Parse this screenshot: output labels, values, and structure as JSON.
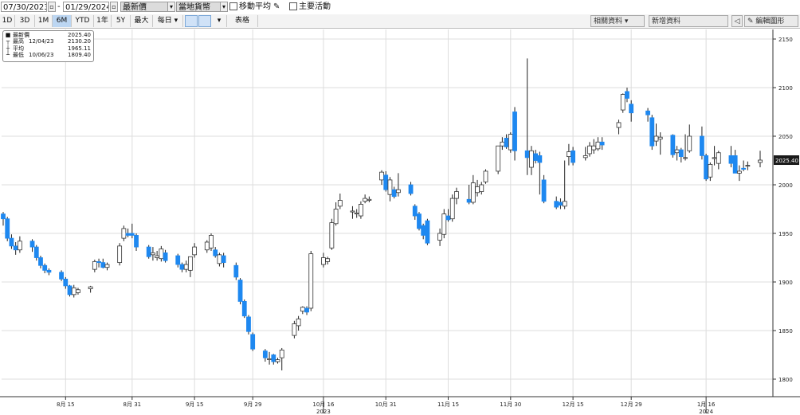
{
  "toolbar": {
    "start_date": "07/30/2023",
    "end_date": "01/29/2024",
    "price_type": "最新價",
    "currency": "當地貨幣",
    "moving_average_label": "移動平均",
    "events_label": "主要活動"
  },
  "ranges": [
    "1D",
    "3D",
    "1M",
    "6M",
    "YTD",
    "1年",
    "5Y",
    "最大"
  ],
  "active_range": "6M",
  "frequency": "每日",
  "table_label": "表格",
  "related_data_label": "相關資料",
  "add_data_label": "新增資料",
  "edit_chart_label": "編輯圖形",
  "legend": [
    {
      "icon": "■",
      "name": "最新價",
      "date": "",
      "value": "2025.40"
    },
    {
      "icon": "┬",
      "name": "最高",
      "date": "12/04/23",
      "value": "2130.20"
    },
    {
      "icon": "┼",
      "name": "平均",
      "date": "",
      "value": "1965.11"
    },
    {
      "icon": "┴",
      "name": "最低",
      "date": "10/06/23",
      "value": "1809.40"
    }
  ],
  "colors": {
    "up": "#ffffff",
    "down": "#1e88f0",
    "wick": "#222222",
    "grid": "#dddddd",
    "last_label_bg": "#1a1a1a"
  },
  "chart_data": {
    "type": "candlestick",
    "ylim": [
      1780,
      2160
    ],
    "y_ticks": [
      1800,
      1850,
      1900,
      1950,
      2000,
      2050,
      2100,
      2150
    ],
    "last_value": "2025.40",
    "x_ticks": [
      {
        "label": "8月 15",
        "date": "2023-08-15"
      },
      {
        "label": "8月 31",
        "date": "2023-08-31"
      },
      {
        "label": "9月 15",
        "date": "2023-09-15"
      },
      {
        "label": "9月 29",
        "date": "2023-09-29"
      },
      {
        "label": "10月 16",
        "date": "2023-10-16"
      },
      {
        "label": "10月 31",
        "date": "2023-10-31"
      },
      {
        "label": "11月 15",
        "date": "2023-11-15"
      },
      {
        "label": "11月 30",
        "date": "2023-11-30"
      },
      {
        "label": "12月 15",
        "date": "2023-12-15"
      },
      {
        "label": "12月 29",
        "date": "2023-12-29"
      },
      {
        "label": "1月 16",
        "date": "2024-01-16"
      }
    ],
    "year_labels": [
      {
        "label": "2023",
        "date": "2023-10-16"
      },
      {
        "label": "2024",
        "date": "2024-01-16"
      }
    ],
    "candles": [
      {
        "date": "2023-07-31",
        "o": 1970,
        "h": 1972,
        "l": 1958,
        "c": 1965
      },
      {
        "date": "2023-08-01",
        "o": 1965,
        "h": 1967,
        "l": 1942,
        "c": 1945
      },
      {
        "date": "2023-08-02",
        "o": 1945,
        "h": 1949,
        "l": 1934,
        "c": 1937
      },
      {
        "date": "2023-08-03",
        "o": 1937,
        "h": 1941,
        "l": 1928,
        "c": 1933
      },
      {
        "date": "2023-08-04",
        "o": 1933,
        "h": 1947,
        "l": 1930,
        "c": 1942
      },
      {
        "date": "2023-08-07",
        "o": 1942,
        "h": 1944,
        "l": 1931,
        "c": 1936
      },
      {
        "date": "2023-08-08",
        "o": 1936,
        "h": 1938,
        "l": 1922,
        "c": 1925
      },
      {
        "date": "2023-08-09",
        "o": 1925,
        "h": 1927,
        "l": 1914,
        "c": 1917
      },
      {
        "date": "2023-08-10",
        "o": 1917,
        "h": 1919,
        "l": 1909,
        "c": 1912
      },
      {
        "date": "2023-08-11",
        "o": 1912,
        "h": 1914,
        "l": 1907,
        "c": 1910
      },
      {
        "date": "2023-08-14",
        "o": 1910,
        "h": 1912,
        "l": 1901,
        "c": 1903
      },
      {
        "date": "2023-08-15",
        "o": 1903,
        "h": 1905,
        "l": 1893,
        "c": 1896
      },
      {
        "date": "2023-08-16",
        "o": 1896,
        "h": 1897,
        "l": 1885,
        "c": 1887
      },
      {
        "date": "2023-08-17",
        "o": 1887,
        "h": 1897,
        "l": 1884,
        "c": 1894
      },
      {
        "date": "2023-08-18",
        "o": 1889,
        "h": 1894,
        "l": 1887,
        "c": 1892
      },
      {
        "date": "2023-08-21",
        "o": 1893,
        "h": 1896,
        "l": 1889,
        "c": 1895
      },
      {
        "date": "2023-08-22",
        "o": 1913,
        "h": 1923,
        "l": 1910,
        "c": 1921
      },
      {
        "date": "2023-08-23",
        "o": 1921,
        "h": 1924,
        "l": 1915,
        "c": 1920
      },
      {
        "date": "2023-08-24",
        "o": 1920,
        "h": 1924,
        "l": 1914,
        "c": 1915
      },
      {
        "date": "2023-08-25",
        "o": 1915,
        "h": 1920,
        "l": 1912,
        "c": 1918
      },
      {
        "date": "2023-08-28",
        "o": 1920,
        "h": 1940,
        "l": 1917,
        "c": 1937
      },
      {
        "date": "2023-08-29",
        "o": 1945,
        "h": 1958,
        "l": 1942,
        "c": 1955
      },
      {
        "date": "2023-08-30",
        "o": 1950,
        "h": 1955,
        "l": 1946,
        "c": 1948
      },
      {
        "date": "2023-08-31",
        "o": 1950,
        "h": 1960,
        "l": 1945,
        "c": 1948
      },
      {
        "date": "2023-09-01",
        "o": 1948,
        "h": 1950,
        "l": 1932,
        "c": 1936
      },
      {
        "date": "2023-09-04",
        "o": 1936,
        "h": 1938,
        "l": 1924,
        "c": 1926
      },
      {
        "date": "2023-09-05",
        "o": 1928,
        "h": 1936,
        "l": 1922,
        "c": 1930
      },
      {
        "date": "2023-09-06",
        "o": 1925,
        "h": 1932,
        "l": 1922,
        "c": 1927
      },
      {
        "date": "2023-09-07",
        "o": 1924,
        "h": 1937,
        "l": 1921,
        "c": 1934
      },
      {
        "date": "2023-09-08",
        "o": 1930,
        "h": 1933,
        "l": 1920,
        "c": 1922
      },
      {
        "date": "2023-09-11",
        "o": 1927,
        "h": 1929,
        "l": 1915,
        "c": 1918
      },
      {
        "date": "2023-09-12",
        "o": 1918,
        "h": 1920,
        "l": 1910,
        "c": 1913
      },
      {
        "date": "2023-09-13",
        "o": 1913,
        "h": 1922,
        "l": 1910,
        "c": 1918
      },
      {
        "date": "2023-09-14",
        "o": 1912,
        "h": 1925,
        "l": 1905,
        "c": 1926
      },
      {
        "date": "2023-09-15",
        "o": 1928,
        "h": 1940,
        "l": 1925,
        "c": 1936
      },
      {
        "date": "2023-09-18",
        "o": 1933,
        "h": 1943,
        "l": 1930,
        "c": 1941
      },
      {
        "date": "2023-09-19",
        "o": 1935,
        "h": 1950,
        "l": 1932,
        "c": 1948
      },
      {
        "date": "2023-09-20",
        "o": 1933,
        "h": 1936,
        "l": 1925,
        "c": 1927
      },
      {
        "date": "2023-09-21",
        "o": 1919,
        "h": 1930,
        "l": 1916,
        "c": 1928
      },
      {
        "date": "2023-09-22",
        "o": 1927,
        "h": 1930,
        "l": 1915,
        "c": 1920
      },
      {
        "date": "2023-09-25",
        "o": 1917,
        "h": 1920,
        "l": 1902,
        "c": 1905
      },
      {
        "date": "2023-09-26",
        "o": 1902,
        "h": 1904,
        "l": 1877,
        "c": 1880
      },
      {
        "date": "2023-09-27",
        "o": 1880,
        "h": 1882,
        "l": 1863,
        "c": 1865
      },
      {
        "date": "2023-09-28",
        "o": 1864,
        "h": 1866,
        "l": 1846,
        "c": 1849
      },
      {
        "date": "2023-09-29",
        "o": 1846,
        "h": 1848,
        "l": 1829,
        "c": 1831
      },
      {
        "date": "2023-10-02",
        "o": 1829,
        "h": 1831,
        "l": 1818,
        "c": 1822
      },
      {
        "date": "2023-10-03",
        "o": 1820,
        "h": 1828,
        "l": 1815,
        "c": 1821
      },
      {
        "date": "2023-10-04",
        "o": 1825,
        "h": 1826,
        "l": 1815,
        "c": 1818
      },
      {
        "date": "2023-10-05",
        "o": 1818,
        "h": 1822,
        "l": 1816,
        "c": 1820
      },
      {
        "date": "2023-10-06",
        "o": 1822,
        "h": 1832,
        "l": 1809,
        "c": 1830
      },
      {
        "date": "2023-10-09",
        "o": 1845,
        "h": 1860,
        "l": 1842,
        "c": 1857
      },
      {
        "date": "2023-10-10",
        "o": 1855,
        "h": 1865,
        "l": 1850,
        "c": 1862
      },
      {
        "date": "2023-10-11",
        "o": 1870,
        "h": 1875,
        "l": 1867,
        "c": 1874
      },
      {
        "date": "2023-10-12",
        "o": 1873,
        "h": 1875,
        "l": 1866,
        "c": 1869
      },
      {
        "date": "2023-10-13",
        "o": 1873,
        "h": 1932,
        "l": 1870,
        "c": 1929
      },
      {
        "date": "2023-10-16",
        "o": 1918,
        "h": 1930,
        "l": 1915,
        "c": 1925
      },
      {
        "date": "2023-10-17",
        "o": 1921,
        "h": 1926,
        "l": 1918,
        "c": 1924
      },
      {
        "date": "2023-10-18",
        "o": 1935,
        "h": 1965,
        "l": 1933,
        "c": 1961
      },
      {
        "date": "2023-10-19",
        "o": 1960,
        "h": 1982,
        "l": 1958,
        "c": 1975
      },
      {
        "date": "2023-10-20",
        "o": 1978,
        "h": 1991,
        "l": 1975,
        "c": 1984
      },
      {
        "date": "2023-10-23",
        "o": 1972,
        "h": 1978,
        "l": 1965,
        "c": 1973
      },
      {
        "date": "2023-10-24",
        "o": 1970,
        "h": 1975,
        "l": 1966,
        "c": 1971
      },
      {
        "date": "2023-10-25",
        "o": 1968,
        "h": 1983,
        "l": 1965,
        "c": 1980
      },
      {
        "date": "2023-10-26",
        "o": 1983,
        "h": 1990,
        "l": 1981,
        "c": 1986
      },
      {
        "date": "2023-10-27",
        "o": 1984,
        "h": 1988,
        "l": 1982,
        "c": 1985
      },
      {
        "date": "2023-10-30",
        "o": 2005,
        "h": 2015,
        "l": 2000,
        "c": 2013
      },
      {
        "date": "2023-10-31",
        "o": 2010,
        "h": 2014,
        "l": 1993,
        "c": 1995
      },
      {
        "date": "2023-11-01",
        "o": 1990,
        "h": 2008,
        "l": 1983,
        "c": 2005
      },
      {
        "date": "2023-11-02",
        "o": 1995,
        "h": 1998,
        "l": 1986,
        "c": 1988
      },
      {
        "date": "2023-11-03",
        "o": 1992,
        "h": 2012,
        "l": 1988,
        "c": 1995
      },
      {
        "date": "2023-11-06",
        "o": 2000,
        "h": 2003,
        "l": 1989,
        "c": 1991
      },
      {
        "date": "2023-11-07",
        "o": 1978,
        "h": 1980,
        "l": 1964,
        "c": 1968
      },
      {
        "date": "2023-11-08",
        "o": 1970,
        "h": 1972,
        "l": 1953,
        "c": 1955
      },
      {
        "date": "2023-11-09",
        "o": 1958,
        "h": 1960,
        "l": 1944,
        "c": 1948
      },
      {
        "date": "2023-11-10",
        "o": 1963,
        "h": 1965,
        "l": 1938,
        "c": 1940
      },
      {
        "date": "2023-11-13",
        "o": 1943,
        "h": 1955,
        "l": 1937,
        "c": 1950
      },
      {
        "date": "2023-11-14",
        "o": 1949,
        "h": 1975,
        "l": 1945,
        "c": 1970
      },
      {
        "date": "2023-11-15",
        "o": 1968,
        "h": 1975,
        "l": 1962,
        "c": 1964
      },
      {
        "date": "2023-11-16",
        "o": 1965,
        "h": 1990,
        "l": 1962,
        "c": 1986
      },
      {
        "date": "2023-11-17",
        "o": 1986,
        "h": 1997,
        "l": 1980,
        "c": 1993
      },
      {
        "date": "2023-11-20",
        "o": 1985,
        "h": 2000,
        "l": 1980,
        "c": 1982
      },
      {
        "date": "2023-11-21",
        "o": 1982,
        "h": 2010,
        "l": 1980,
        "c": 2002
      },
      {
        "date": "2023-11-22",
        "o": 1992,
        "h": 2005,
        "l": 1988,
        "c": 1998
      },
      {
        "date": "2023-11-23",
        "o": 1993,
        "h": 2003,
        "l": 1990,
        "c": 2000
      },
      {
        "date": "2023-11-24",
        "o": 2003,
        "h": 2016,
        "l": 2001,
        "c": 2014
      },
      {
        "date": "2023-11-27",
        "o": 2014,
        "h": 2040,
        "l": 2011,
        "c": 2040
      },
      {
        "date": "2023-11-28",
        "o": 2040,
        "h": 2049,
        "l": 2036,
        "c": 2044
      },
      {
        "date": "2023-11-29",
        "o": 2048,
        "h": 2052,
        "l": 2037,
        "c": 2039
      },
      {
        "date": "2023-11-30",
        "o": 2036,
        "h": 2054,
        "l": 2033,
        "c": 2052
      },
      {
        "date": "2023-12-01",
        "o": 2075,
        "h": 2080,
        "l": 2025,
        "c": 2035
      },
      {
        "date": "2023-12-04",
        "o": 2035,
        "h": 2130,
        "l": 2010,
        "c": 2028
      },
      {
        "date": "2023-12-05",
        "o": 2018,
        "h": 2040,
        "l": 2010,
        "c": 2035
      },
      {
        "date": "2023-12-06",
        "o": 2032,
        "h": 2036,
        "l": 2022,
        "c": 2025
      },
      {
        "date": "2023-12-07",
        "o": 2030,
        "h": 2034,
        "l": 1990,
        "c": 2023
      },
      {
        "date": "2023-12-08",
        "o": 2005,
        "h": 2010,
        "l": 1981,
        "c": 1983
      },
      {
        "date": "2023-12-11",
        "o": 1983,
        "h": 1988,
        "l": 1975,
        "c": 1977
      },
      {
        "date": "2023-12-12",
        "o": 1982,
        "h": 1986,
        "l": 1975,
        "c": 1979
      },
      {
        "date": "2023-12-13",
        "o": 1978,
        "h": 2025,
        "l": 1975,
        "c": 1983
      },
      {
        "date": "2023-12-14",
        "o": 2029,
        "h": 2042,
        "l": 2020,
        "c": 2034
      },
      {
        "date": "2023-12-15",
        "o": 2035,
        "h": 2039,
        "l": 2020,
        "c": 2023
      },
      {
        "date": "2023-12-18",
        "o": 2028,
        "h": 2039,
        "l": 2025,
        "c": 2030
      },
      {
        "date": "2023-12-19",
        "o": 2032,
        "h": 2044,
        "l": 2029,
        "c": 2040
      },
      {
        "date": "2023-12-20",
        "o": 2036,
        "h": 2047,
        "l": 2032,
        "c": 2040
      },
      {
        "date": "2023-12-21",
        "o": 2037,
        "h": 2049,
        "l": 2035,
        "c": 2044
      },
      {
        "date": "2023-12-22",
        "o": 2044,
        "h": 2049,
        "l": 2036,
        "c": 2041
      },
      {
        "date": "2023-12-26",
        "o": 2059,
        "h": 2067,
        "l": 2052,
        "c": 2064
      },
      {
        "date": "2023-12-27",
        "o": 2077,
        "h": 2094,
        "l": 2074,
        "c": 2093
      },
      {
        "date": "2023-12-28",
        "o": 2096,
        "h": 2100,
        "l": 2085,
        "c": 2089
      },
      {
        "date": "2023-12-29",
        "o": 2083,
        "h": 2087,
        "l": 2065,
        "c": 2074
      },
      {
        "date": "2024-01-02",
        "o": 2076,
        "h": 2079,
        "l": 2065,
        "c": 2072
      },
      {
        "date": "2024-01-03",
        "o": 2069,
        "h": 2072,
        "l": 2036,
        "c": 2040
      },
      {
        "date": "2024-01-04",
        "o": 2045,
        "h": 2063,
        "l": 2040,
        "c": 2050
      },
      {
        "date": "2024-01-05",
        "o": 2047,
        "h": 2054,
        "l": 2031,
        "c": 2049
      },
      {
        "date": "2024-01-08",
        "o": 2051,
        "h": 2052,
        "l": 2028,
        "c": 2031
      },
      {
        "date": "2024-01-09",
        "o": 2033,
        "h": 2040,
        "l": 2025,
        "c": 2036
      },
      {
        "date": "2024-01-10",
        "o": 2036,
        "h": 2038,
        "l": 2023,
        "c": 2029
      },
      {
        "date": "2024-01-11",
        "o": 2028,
        "h": 2052,
        "l": 2025,
        "c": 2028
      },
      {
        "date": "2024-01-12",
        "o": 2035,
        "h": 2062,
        "l": 2033,
        "c": 2050
      },
      {
        "date": "2024-01-15",
        "o": 2050,
        "h": 2060,
        "l": 2026,
        "c": 2030
      },
      {
        "date": "2024-01-16",
        "o": 2030,
        "h": 2032,
        "l": 2004,
        "c": 2006
      },
      {
        "date": "2024-01-17",
        "o": 2008,
        "h": 2023,
        "l": 2004,
        "c": 2021
      },
      {
        "date": "2024-01-18",
        "o": 2027,
        "h": 2040,
        "l": 2020,
        "c": 2028
      },
      {
        "date": "2024-01-19",
        "o": 2022,
        "h": 2035,
        "l": 2016,
        "c": 2033
      },
      {
        "date": "2024-01-22",
        "o": 2030,
        "h": 2040,
        "l": 2018,
        "c": 2022
      },
      {
        "date": "2024-01-23",
        "o": 2030,
        "h": 2036,
        "l": 2015,
        "c": 2012
      },
      {
        "date": "2024-01-24",
        "o": 2012,
        "h": 2020,
        "l": 2004,
        "c": 2014
      },
      {
        "date": "2024-01-25",
        "o": 2017,
        "h": 2025,
        "l": 2014,
        "c": 2016
      },
      {
        "date": "2024-01-26",
        "o": 2020,
        "h": 2024,
        "l": 2015,
        "c": 2020
      },
      {
        "date": "2024-01-29",
        "o": 2023,
        "h": 2035,
        "l": 2018,
        "c": 2025.4
      }
    ]
  }
}
